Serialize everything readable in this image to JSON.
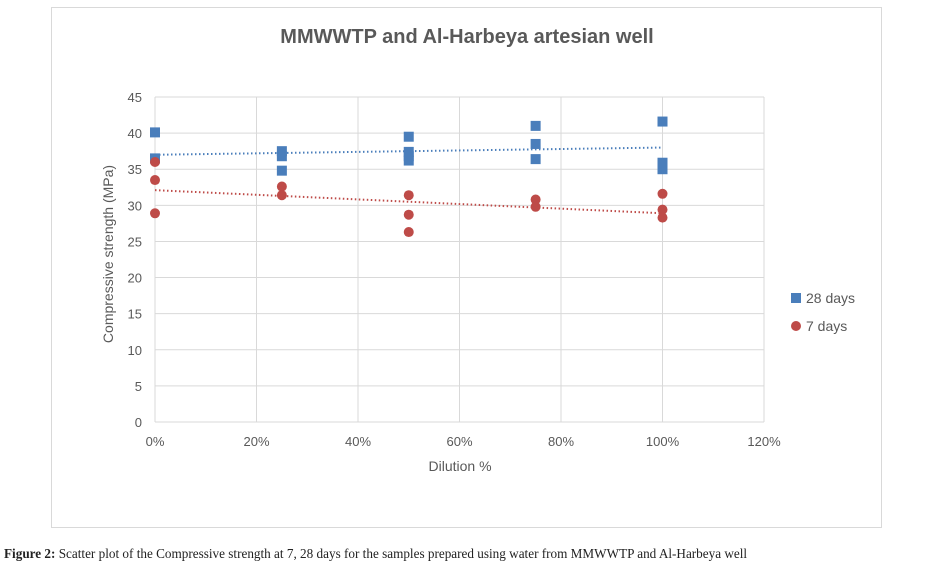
{
  "caption": {
    "label": "Figure 2:",
    "text": " Scatter plot of the Compressive strength at 7, 28 days for the samples prepared using water from MMWWTP and Al-Harbeya well"
  },
  "chart_data": {
    "type": "scatter",
    "title": "MMWWTP and Al-Harbeya artesian well",
    "xlabel": "Dilution %",
    "ylabel": "Compressive strength (MPa)",
    "xlim": [
      0,
      120
    ],
    "ylim": [
      0,
      45
    ],
    "xticks": [
      "0%",
      "20%",
      "40%",
      "60%",
      "80%",
      "100%",
      "120%"
    ],
    "xtick_values": [
      0,
      20,
      40,
      60,
      80,
      100,
      120
    ],
    "yticks": [
      "0",
      "5",
      "10",
      "15",
      "20",
      "25",
      "30",
      "35",
      "40",
      "45"
    ],
    "ytick_values": [
      0,
      5,
      10,
      15,
      20,
      25,
      30,
      35,
      40,
      45
    ],
    "grid": true,
    "legend_position": "right",
    "trendlines": true,
    "series": [
      {
        "name": "28 days",
        "marker": "square",
        "color": "#4a7ebb",
        "points": [
          [
            0,
            40.1
          ],
          [
            0,
            36.5
          ],
          [
            25,
            37.5
          ],
          [
            25,
            36.8
          ],
          [
            25,
            34.8
          ],
          [
            50,
            39.5
          ],
          [
            50,
            37.4
          ],
          [
            50,
            36.8
          ],
          [
            50,
            36.2
          ],
          [
            75,
            41.0
          ],
          [
            75,
            38.5
          ],
          [
            75,
            36.4
          ],
          [
            100,
            41.6
          ],
          [
            100,
            35.9
          ],
          [
            100,
            35.0
          ]
        ],
        "trend": {
          "from": [
            0,
            37.0
          ],
          "to": [
            100,
            38.0
          ]
        }
      },
      {
        "name": "7 days",
        "marker": "circle",
        "color": "#be4b48",
        "points": [
          [
            0,
            36.0
          ],
          [
            0,
            33.5
          ],
          [
            0,
            28.9
          ],
          [
            25,
            32.6
          ],
          [
            25,
            31.4
          ],
          [
            50,
            31.4
          ],
          [
            50,
            28.7
          ],
          [
            50,
            26.3
          ],
          [
            75,
            30.8
          ],
          [
            75,
            29.8
          ],
          [
            100,
            31.6
          ],
          [
            100,
            29.4
          ],
          [
            100,
            28.3
          ]
        ],
        "trend": {
          "from": [
            0,
            32.1
          ],
          "to": [
            100,
            28.9
          ]
        }
      }
    ]
  }
}
